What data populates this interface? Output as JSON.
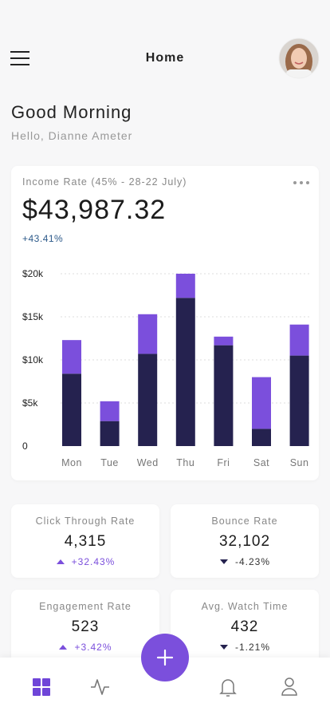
{
  "header": {
    "title": "Home"
  },
  "greeting": {
    "title": "Good Morning",
    "subtitle": "Hello, Dianne Ameter"
  },
  "income_card": {
    "label": "Income Rate (45% - 28-22 July)",
    "amount": "$43,987.32",
    "change": "+43.41%"
  },
  "chart_data": {
    "type": "stacked_bar",
    "categories": [
      "Mon",
      "Tue",
      "Wed",
      "Thu",
      "Fri",
      "Sat",
      "Sun"
    ],
    "series": [
      {
        "color": "#25224f",
        "values": [
          8400,
          2900,
          10700,
          17200,
          11700,
          2000,
          10500
        ]
      },
      {
        "color": "#7b4fdc",
        "values": [
          3900,
          2300,
          4600,
          2800,
          1000,
          6000,
          3600
        ]
      }
    ],
    "ylim": [
      0,
      20000
    ],
    "yticks": [
      0,
      {
        "value": 5000,
        "label": "$5k"
      },
      {
        "value": 10000,
        "label": "$10k"
      },
      {
        "value": 15000,
        "label": "$15k"
      },
      {
        "value": 20000,
        "label": "$20k"
      }
    ],
    "grid": true
  },
  "stats": [
    {
      "title": "Click Through Rate",
      "value": "4,315",
      "change": "+32.43%",
      "trend": "up"
    },
    {
      "title": "Bounce Rate",
      "value": "32,102",
      "change": "-4.23%",
      "trend": "down"
    },
    {
      "title": "Engagement Rate",
      "value": "523",
      "change": "+3.42%",
      "trend": "up"
    },
    {
      "title": "Avg. Watch Time",
      "value": "432",
      "change": "-1.21%",
      "trend": "down"
    }
  ]
}
